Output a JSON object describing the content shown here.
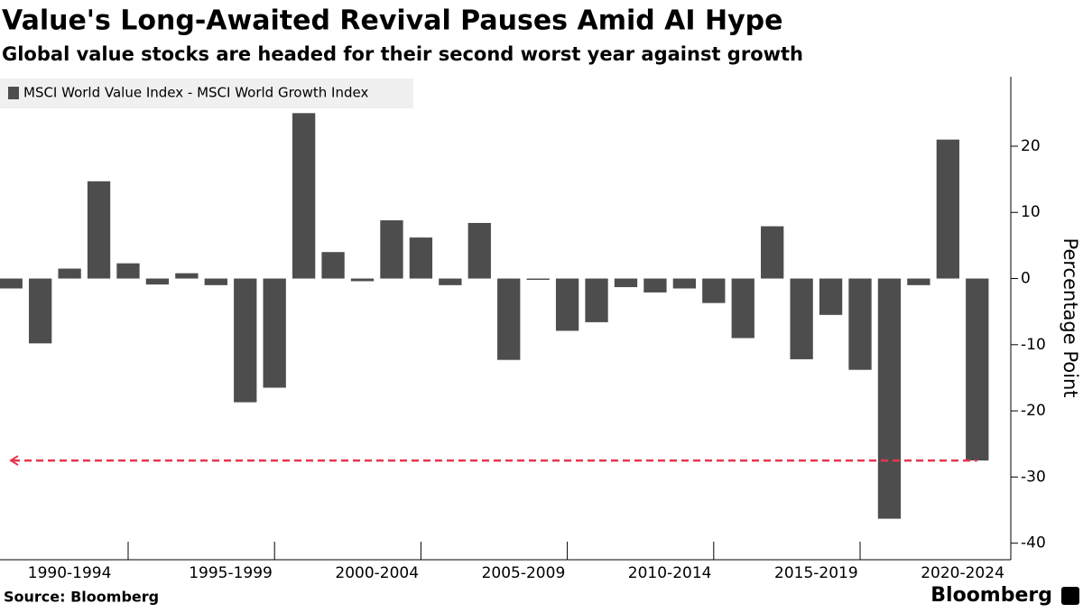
{
  "chart_data": {
    "type": "bar",
    "title": "Value's Long-Awaited Revival Pauses Amid AI Hype",
    "subtitle": "Global value stocks are headed for their second worst year against growth",
    "legend": "MSCI World Value Index - MSCI World Growth Index",
    "y_label": "Percentage Point",
    "source": "Source: Bloomberg",
    "brand": "Bloomberg",
    "color": "#4d4d4d",
    "categories": [
      null,
      null,
      "1990-1994",
      null,
      null,
      null,
      null,
      "1995-1999",
      null,
      null,
      null,
      null,
      "2000-2004",
      null,
      null,
      null,
      null,
      "2005-2009",
      null,
      null,
      null,
      null,
      "2010-2014",
      null,
      null,
      null,
      null,
      "2015-2019",
      null,
      null,
      null,
      null,
      "2020-2024",
      null
    ],
    "values": [
      -1.5,
      -9.8,
      1.5,
      14.7,
      2.3,
      -0.9,
      0.8,
      -1,
      -18.7,
      -16.5,
      25,
      4,
      -0.4,
      8.8,
      6.2,
      -1,
      8.4,
      -12.3,
      -0.2,
      -7.9,
      -6.6,
      -1.3,
      -2.1,
      -1.5,
      -3.7,
      -9,
      7.9,
      -12.2,
      -5.5,
      -13.8,
      -36.3,
      -1,
      21,
      -27.5
    ],
    "reference_line": -27.5,
    "reference_color": "#e8344e",
    "ylim": [
      -42.5,
      30.5
    ],
    "yticks": [
      20,
      10,
      0,
      -10,
      -20,
      -30,
      -40
    ]
  }
}
